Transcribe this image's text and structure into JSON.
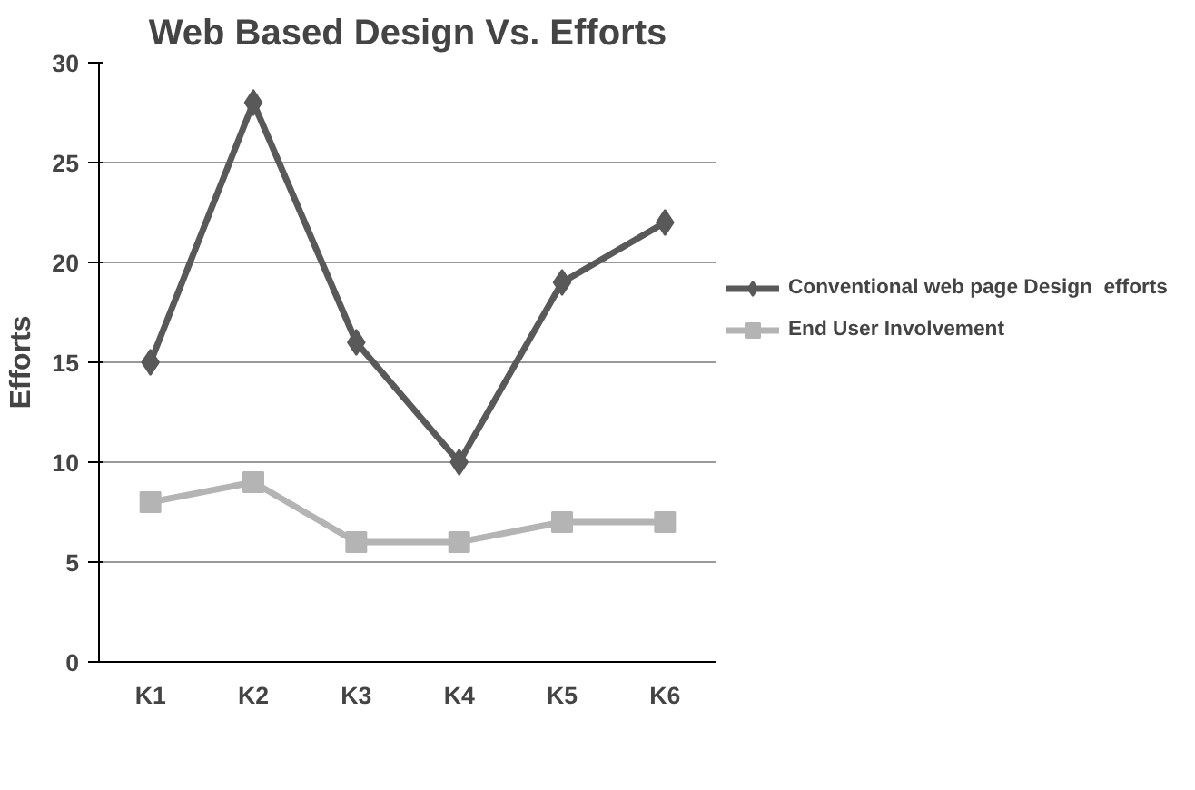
{
  "chart_data": {
    "type": "line",
    "title": "Web Based Design Vs. Efforts",
    "ylabel": "Efforts",
    "categories": [
      "K1",
      "K2",
      "K3",
      "K4",
      "K5",
      "K6"
    ],
    "ylim": [
      0,
      30
    ],
    "yticks": [
      0,
      5,
      10,
      15,
      20,
      25,
      30
    ],
    "grid": "y",
    "legend": "right",
    "series": [
      {
        "name": "Conventional web page Design  efforts",
        "color": "#595959",
        "marker": "diamond",
        "values": [
          15,
          28,
          16,
          10,
          19,
          22
        ]
      },
      {
        "name": "End User Involvement",
        "color": "#b4b4b4",
        "marker": "square",
        "values": [
          8,
          9,
          6,
          6,
          7,
          7
        ]
      }
    ]
  }
}
